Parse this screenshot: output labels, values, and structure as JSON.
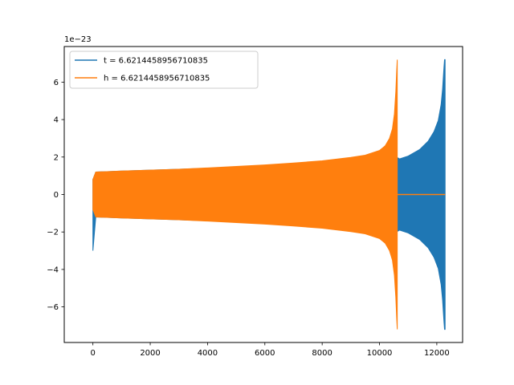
{
  "chart_data": {
    "type": "line",
    "title": "",
    "xlabel": "",
    "ylabel": "",
    "xlim": [
      -1000,
      12900
    ],
    "ylim": [
      -7.9,
      7.9
    ],
    "y_offset_label": "1e−23",
    "grid": false,
    "legend_position": "top-left",
    "x_ticks": [
      0,
      2000,
      4000,
      6000,
      8000,
      10000,
      12000
    ],
    "x_tick_labels": [
      "0",
      "2000",
      "4000",
      "6000",
      "8000",
      "10000",
      "12000"
    ],
    "y_ticks": [
      -6,
      -4,
      -2,
      0,
      2,
      4,
      6
    ],
    "y_tick_labels": [
      "−6",
      "−4",
      "−2",
      "0",
      "2",
      "4",
      "6"
    ],
    "series": [
      {
        "name": "t = 6.6214458956710835",
        "color": "#1f77b4",
        "x": [
          0,
          100,
          1000,
          2000,
          3000,
          4000,
          5000,
          6000,
          7000,
          8000,
          9000,
          9500,
          10000,
          10300,
          10500,
          10650,
          10700,
          11000,
          11400,
          11700,
          11900,
          12050,
          12150,
          12200,
          12250,
          12270,
          12290
        ],
        "y_upper": [
          0.8,
          1.2,
          1.25,
          1.3,
          1.35,
          1.4,
          1.47,
          1.54,
          1.63,
          1.73,
          1.85,
          1.9,
          1.95,
          1.98,
          2.0,
          1.95,
          1.9,
          2.05,
          2.4,
          2.85,
          3.35,
          3.95,
          4.8,
          5.6,
          6.8,
          7.2,
          7.2
        ],
        "y_lower": [
          -3.0,
          -1.2,
          -1.25,
          -1.3,
          -1.35,
          -1.4,
          -1.47,
          -1.54,
          -1.63,
          -1.73,
          -1.85,
          -1.9,
          -1.95,
          -1.98,
          -2.0,
          -1.95,
          -1.9,
          -2.05,
          -2.4,
          -2.85,
          -3.35,
          -3.95,
          -4.8,
          -5.6,
          -6.8,
          -7.2,
          -7.2
        ]
      },
      {
        "name": "h = 6.6214458956710835",
        "color": "#ff7f0e",
        "x": [
          0,
          100,
          1000,
          2000,
          3000,
          4000,
          5000,
          6000,
          7000,
          8000,
          9000,
          9500,
          10000,
          10200,
          10350,
          10450,
          10520,
          10570,
          10600,
          10620
        ],
        "y_upper": [
          0.8,
          1.2,
          1.25,
          1.3,
          1.35,
          1.42,
          1.5,
          1.58,
          1.68,
          1.8,
          1.98,
          2.1,
          2.35,
          2.6,
          3.0,
          3.5,
          4.3,
          5.5,
          6.6,
          7.2
        ],
        "y_lower": [
          -0.8,
          -1.2,
          -1.25,
          -1.3,
          -1.35,
          -1.42,
          -1.5,
          -1.58,
          -1.68,
          -1.8,
          -1.98,
          -2.1,
          -2.35,
          -2.6,
          -3.0,
          -3.5,
          -4.3,
          -5.5,
          -6.6,
          -7.2
        ],
        "flat_after": {
          "x_start": 10620,
          "x_end": 12290,
          "y": 0.0
        }
      }
    ]
  }
}
